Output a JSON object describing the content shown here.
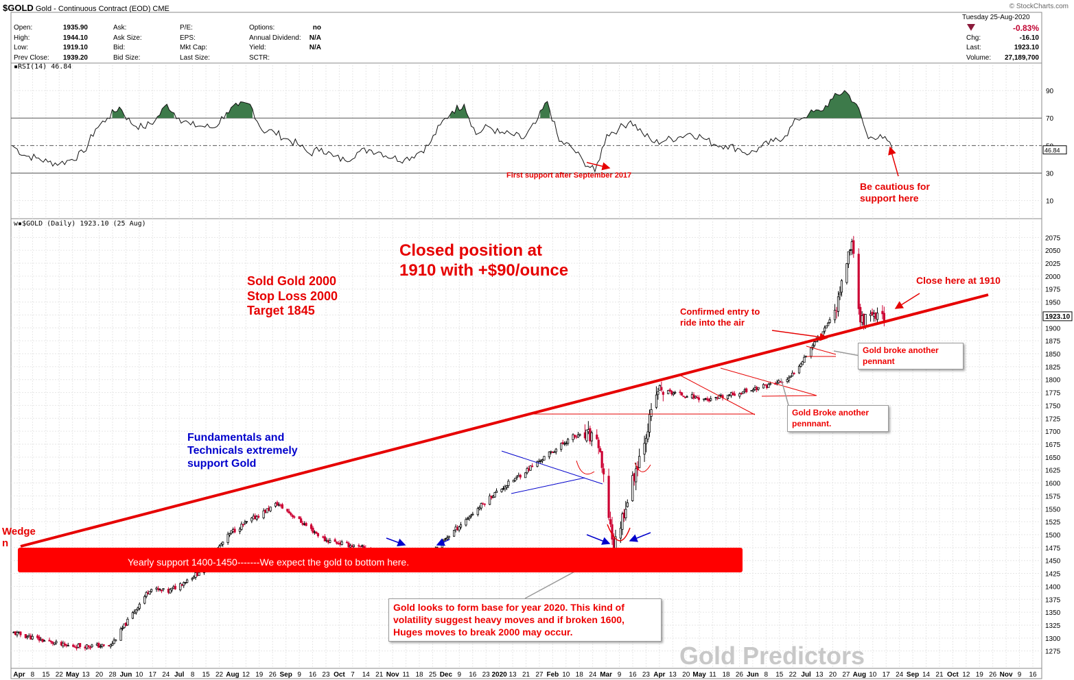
{
  "header": {
    "symbol": "$GOLD",
    "name": "Gold - Continuous Contract (EOD) CME",
    "credit": "© StockCharts.com"
  },
  "quote": {
    "open_label": "Open:",
    "open": "1935.90",
    "high_label": "High:",
    "high": "1944.10",
    "low_label": "Low:",
    "low": "1919.10",
    "prev_label": "Prev Close:",
    "prev": "1939.20",
    "ask_label": "Ask:",
    "ask_size_label": "Ask Size:",
    "bid_label": "Bid:",
    "bid_size_label": "Bid Size:",
    "pe_label": "P/E:",
    "eps_label": "EPS:",
    "mktcap_label": "Mkt Cap:",
    "lastsize_label": "Last Size:",
    "options_label": "Options:",
    "options": "no",
    "div_label": "Annual Dividend:",
    "div": "N/A",
    "yield_label": "Yield:",
    "yield": "N/A",
    "sctr_label": "SCTR:",
    "date": "Tuesday  25-Aug-2020",
    "pct_change": "-0.83%",
    "chg_label": "Chg:",
    "chg": "-16.10",
    "last_label": "Last:",
    "last": "1923.10",
    "volume_label": "Volume:",
    "volume": "27,189,700"
  },
  "rsi": {
    "label": "RSI(14) 46.84",
    "current": "46.84",
    "levels": [
      90,
      70,
      50,
      30,
      10
    ]
  },
  "price_panel": {
    "label": "$GOLD (Daily) 1923.10 (25 Aug)",
    "current_tag": "1923.10",
    "ylevels": [
      2075,
      2050,
      2025,
      2000,
      1975,
      1950,
      1925,
      1900,
      1875,
      1850,
      1825,
      1800,
      1775,
      1750,
      1725,
      1700,
      1675,
      1650,
      1625,
      1600,
      1575,
      1550,
      1525,
      1500,
      1475,
      1450,
      1425,
      1400,
      1375,
      1350,
      1325,
      1300,
      1275
    ]
  },
  "xaxis": [
    {
      "t": "Apr",
      "b": true
    },
    {
      "t": "8"
    },
    {
      "t": "15"
    },
    {
      "t": "22"
    },
    {
      "t": "May",
      "b": true
    },
    {
      "t": "13"
    },
    {
      "t": "20"
    },
    {
      "t": "28"
    },
    {
      "t": "Jun",
      "b": true
    },
    {
      "t": "10"
    },
    {
      "t": "17"
    },
    {
      "t": "24"
    },
    {
      "t": "Jul",
      "b": true
    },
    {
      "t": "8"
    },
    {
      "t": "15"
    },
    {
      "t": "22"
    },
    {
      "t": "Aug",
      "b": true
    },
    {
      "t": "12"
    },
    {
      "t": "19"
    },
    {
      "t": "26"
    },
    {
      "t": "Sep",
      "b": true
    },
    {
      "t": "9"
    },
    {
      "t": "16"
    },
    {
      "t": "23"
    },
    {
      "t": "Oct",
      "b": true
    },
    {
      "t": "7"
    },
    {
      "t": "14"
    },
    {
      "t": "21"
    },
    {
      "t": "Nov",
      "b": true
    },
    {
      "t": "11"
    },
    {
      "t": "18"
    },
    {
      "t": "25"
    },
    {
      "t": "Dec",
      "b": true
    },
    {
      "t": "9"
    },
    {
      "t": "16"
    },
    {
      "t": "23"
    },
    {
      "t": "2020",
      "b": true
    },
    {
      "t": "13"
    },
    {
      "t": "21"
    },
    {
      "t": "27"
    },
    {
      "t": "Feb",
      "b": true
    },
    {
      "t": "10"
    },
    {
      "t": "18"
    },
    {
      "t": "24"
    },
    {
      "t": "Mar",
      "b": true
    },
    {
      "t": "9"
    },
    {
      "t": "16"
    },
    {
      "t": "23"
    },
    {
      "t": "Apr",
      "b": true
    },
    {
      "t": "13"
    },
    {
      "t": "20"
    },
    {
      "t": "May",
      "b": true
    },
    {
      "t": "11"
    },
    {
      "t": "18"
    },
    {
      "t": "26"
    },
    {
      "t": "Jun",
      "b": true
    },
    {
      "t": "8"
    },
    {
      "t": "15"
    },
    {
      "t": "22"
    },
    {
      "t": "Jul",
      "b": true
    },
    {
      "t": "13"
    },
    {
      "t": "20"
    },
    {
      "t": "27"
    },
    {
      "t": "Aug",
      "b": true
    },
    {
      "t": "10"
    },
    {
      "t": "17"
    },
    {
      "t": "24"
    },
    {
      "t": "Sep",
      "b": true
    },
    {
      "t": "14"
    },
    {
      "t": "21"
    },
    {
      "t": "Oct",
      "b": true
    },
    {
      "t": "12"
    },
    {
      "t": "19"
    },
    {
      "t": "26"
    },
    {
      "t": "Nov",
      "b": true
    },
    {
      "t": "9"
    },
    {
      "t": "16"
    }
  ],
  "annotations": {
    "closed_1": "Closed position at",
    "closed_2": "1910 with +$90/ounce",
    "sold_1": "Sold Gold 2000",
    "sold_2": "Stop Loss 2000",
    "sold_3": "Target 1845",
    "fund_1": "Fundamentals and",
    "fund_2": "Technicals extremely",
    "fund_3": "support Gold",
    "wedge_1": "Wedge",
    "wedge_2": "n",
    "support": "Yearly support 1400-1450-------We expect the gold to bottom here.",
    "base_1": "Gold looks to form base for year 2020. This kind of",
    "base_2": "volatility suggest heavy moves and if broken 1600,",
    "base_3": "Huges moves to break 2000 may occur.",
    "first_support": "First support after September 2017",
    "cautious_1": "Be cautious for",
    "cautious_2": "support here",
    "close_here": "Close here at 1910",
    "confirmed_1": "Confirmed entry to",
    "confirmed_2": "ride into the air",
    "pennant_a1": "Gold broke another",
    "pennant_a2": "pennant",
    "pennant_b1": "Gold Broke another",
    "pennant_b2": "pennnant.",
    "watermark": "Gold Predictors"
  },
  "colors": {
    "up": "#000000",
    "down": "#cc0033",
    "annotation": "#e60000",
    "blue": "#0000cc",
    "rsi_fill": "#3d7a4a"
  },
  "chart_data": {
    "type": "candlestick",
    "title": "$GOLD (Daily) 1923.10 (25 Aug)",
    "x_range": [
      "2019-04-01",
      "2020-11-16"
    ],
    "ylim": [
      1260,
      2090
    ],
    "anchor_closes": [
      {
        "date": "2019-04-01",
        "close": 1310
      },
      {
        "date": "2019-05-01",
        "close": 1285
      },
      {
        "date": "2019-05-28",
        "close": 1285
      },
      {
        "date": "2019-06-20",
        "close": 1395
      },
      {
        "date": "2019-07-01",
        "close": 1390
      },
      {
        "date": "2019-07-18",
        "close": 1425
      },
      {
        "date": "2019-08-07",
        "close": 1505
      },
      {
        "date": "2019-09-03",
        "close": 1560
      },
      {
        "date": "2019-10-01",
        "close": 1490
      },
      {
        "date": "2019-11-12",
        "close": 1460
      },
      {
        "date": "2019-12-02",
        "close": 1465
      },
      {
        "date": "2020-01-07",
        "close": 1575
      },
      {
        "date": "2020-02-24",
        "close": 1690
      },
      {
        "date": "2020-03-09",
        "close": 1690
      },
      {
        "date": "2020-03-19",
        "close": 1475
      },
      {
        "date": "2020-04-14",
        "close": 1780
      },
      {
        "date": "2020-05-15",
        "close": 1760
      },
      {
        "date": "2020-06-30",
        "close": 1800
      },
      {
        "date": "2020-07-27",
        "close": 1930
      },
      {
        "date": "2020-08-06",
        "close": 2070
      },
      {
        "date": "2020-08-11",
        "close": 1915
      },
      {
        "date": "2020-08-25",
        "close": 1923
      }
    ],
    "rsi_series": [
      50,
      43,
      41,
      38,
      37,
      40,
      45,
      62,
      70,
      78,
      66,
      63,
      68,
      80,
      70,
      65,
      64,
      63,
      74,
      79,
      80,
      61,
      60,
      55,
      51,
      44,
      48,
      42,
      39,
      45,
      47,
      45,
      41,
      40,
      44,
      50,
      65,
      75,
      80,
      58,
      64,
      59,
      58,
      55,
      66,
      82,
      53,
      49,
      39,
      31,
      58,
      62,
      68,
      59,
      52,
      54,
      56,
      59,
      56,
      51,
      50,
      48,
      44,
      49,
      53,
      57,
      69,
      73,
      75,
      84,
      90,
      80,
      55,
      58,
      48
    ],
    "rsi_levels": [
      30,
      50,
      70
    ]
  }
}
